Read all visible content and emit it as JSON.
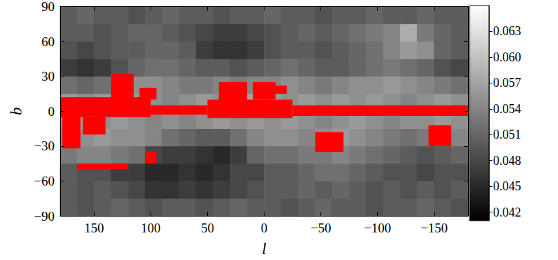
{
  "chart_data": {
    "type": "heatmap",
    "xlabel": "l",
    "ylabel": "b",
    "xlim": [
      180,
      -180
    ],
    "xticks": [
      150,
      100,
      50,
      0,
      {
        "value": -50,
        "label": "−50"
      },
      {
        "value": -100,
        "label": "−100"
      },
      {
        "value": -150,
        "label": "−150"
      }
    ],
    "ylim": [
      -90,
      90
    ],
    "yticks": [
      {
        "value": -90,
        "label": "−90"
      },
      {
        "value": -60,
        "label": "−60"
      },
      {
        "value": -30,
        "label": "−30"
      },
      0,
      30,
      60,
      90
    ],
    "grid": false,
    "cells": {
      "l": [
        172.5,
        157.5,
        142.5,
        127.5,
        112.5,
        97.5,
        82.5,
        67.5,
        52.5,
        37.5,
        22.5,
        7.5,
        -7.5,
        -22.5,
        -37.5,
        -52.5,
        -67.5,
        -82.5,
        -97.5,
        -112.5,
        -127.5,
        -142.5,
        -157.5,
        -172.5
      ],
      "b": [
        -82.5,
        -67.5,
        -52.5,
        -37.5,
        -22.5,
        -7.5,
        7.5,
        22.5,
        37.5,
        52.5,
        67.5,
        82.5
      ],
      "values": [
        [
          0.05,
          0.049,
          0.05,
          0.051,
          0.05,
          0.049,
          0.05,
          0.05,
          0.049,
          0.05,
          0.051,
          0.05,
          0.05,
          0.049,
          0.05,
          0.051,
          0.05,
          0.05,
          0.049,
          0.05,
          0.05,
          0.051,
          0.05,
          0.049
        ],
        [
          0.05,
          0.049,
          0.05,
          0.049,
          0.048,
          0.046,
          0.046,
          0.047,
          0.046,
          0.047,
          0.048,
          0.049,
          0.05,
          0.05,
          0.051,
          0.05,
          0.051,
          0.05,
          0.049,
          0.05,
          0.049,
          0.05,
          0.049,
          0.05
        ],
        [
          0.05,
          0.049,
          0.049,
          0.047,
          0.047,
          0.045,
          0.045,
          0.046,
          0.045,
          0.046,
          0.048,
          0.048,
          0.05,
          0.05,
          0.051,
          0.052,
          0.052,
          0.051,
          0.05,
          0.049,
          0.049,
          0.048,
          0.049,
          0.049
        ],
        [
          0.053,
          0.054,
          0.054,
          0.053,
          0.052,
          0.048,
          0.047,
          0.047,
          0.046,
          0.045,
          0.047,
          0.051,
          0.052,
          0.052,
          0.053,
          0.053,
          0.054,
          0.053,
          0.052,
          0.051,
          0.05,
          0.049,
          0.05,
          0.051
        ],
        [
          0.054,
          0.055,
          0.056,
          0.055,
          0.055,
          0.054,
          0.052,
          0.051,
          0.05,
          0.05,
          0.052,
          0.054,
          0.055,
          0.055,
          0.054,
          0.055,
          0.056,
          0.055,
          0.054,
          0.053,
          0.052,
          0.053,
          0.054,
          0.054
        ],
        [
          0.055,
          0.056,
          0.055,
          0.056,
          0.055,
          0.054,
          0.055,
          0.054,
          0.055,
          0.056,
          0.055,
          0.056,
          0.055,
          0.056,
          0.055,
          0.054,
          0.055,
          0.056,
          0.055,
          0.054,
          0.055,
          0.055,
          0.056,
          0.055
        ],
        [
          0.056,
          0.055,
          0.056,
          0.055,
          0.056,
          0.055,
          0.054,
          0.055,
          0.056,
          0.055,
          0.056,
          0.057,
          0.056,
          0.055,
          0.056,
          0.055,
          0.056,
          0.055,
          0.056,
          0.055,
          0.054,
          0.055,
          0.056,
          0.055
        ],
        [
          0.052,
          0.051,
          0.052,
          0.054,
          0.055,
          0.055,
          0.054,
          0.053,
          0.053,
          0.054,
          0.053,
          0.054,
          0.054,
          0.055,
          0.054,
          0.053,
          0.054,
          0.055,
          0.055,
          0.056,
          0.055,
          0.054,
          0.053,
          0.052
        ],
        [
          0.047,
          0.046,
          0.047,
          0.049,
          0.051,
          0.052,
          0.052,
          0.051,
          0.05,
          0.05,
          0.049,
          0.05,
          0.051,
          0.052,
          0.051,
          0.05,
          0.05,
          0.051,
          0.052,
          0.053,
          0.052,
          0.051,
          0.049,
          0.048
        ],
        [
          0.049,
          0.048,
          0.049,
          0.05,
          0.05,
          0.051,
          0.051,
          0.05,
          0.047,
          0.046,
          0.046,
          0.047,
          0.049,
          0.05,
          0.05,
          0.049,
          0.05,
          0.051,
          0.052,
          0.054,
          0.056,
          0.055,
          0.051,
          0.05
        ],
        [
          0.05,
          0.05,
          0.049,
          0.05,
          0.051,
          0.051,
          0.05,
          0.049,
          0.048,
          0.047,
          0.047,
          0.048,
          0.049,
          0.05,
          0.051,
          0.05,
          0.051,
          0.052,
          0.053,
          0.054,
          0.058,
          0.053,
          0.051,
          0.05
        ],
        [
          0.05,
          0.051,
          0.05,
          0.05,
          0.049,
          0.05,
          0.051,
          0.05,
          0.05,
          0.049,
          0.05,
          0.05,
          0.051,
          0.05,
          0.05,
          0.049,
          0.05,
          0.05,
          0.051,
          0.05,
          0.05,
          0.051,
          0.05,
          0.05
        ]
      ]
    },
    "colorbar": {
      "range": [
        0.041,
        0.066
      ],
      "ticks": [
        0.042,
        0.045,
        0.048,
        0.051,
        0.054,
        0.057,
        {
          "value": 0.06,
          "label": "0.060"
        },
        0.063
      ],
      "colors": [
        "#000000",
        "#ffffff"
      ]
    },
    "overlay": {
      "color": "#ff0000",
      "regions": [
        [
          180,
          100,
          -5,
          12
        ],
        [
          100,
          50,
          -3,
          5
        ],
        [
          50,
          -25,
          -6,
          10
        ],
        [
          -25,
          -180,
          -4,
          5
        ],
        [
          178,
          162,
          -32,
          -5
        ],
        [
          160,
          140,
          -20,
          -5
        ],
        [
          135,
          115,
          12,
          32
        ],
        [
          110,
          95,
          10,
          20
        ],
        [
          40,
          15,
          5,
          25
        ],
        [
          10,
          -10,
          10,
          25
        ],
        [
          -5,
          -20,
          15,
          22
        ],
        [
          -45,
          -70,
          -35,
          -18
        ],
        [
          -145,
          -165,
          -30,
          -12
        ],
        [
          105,
          95,
          -45,
          -35
        ],
        [
          165,
          120,
          -50,
          -45
        ]
      ]
    }
  }
}
